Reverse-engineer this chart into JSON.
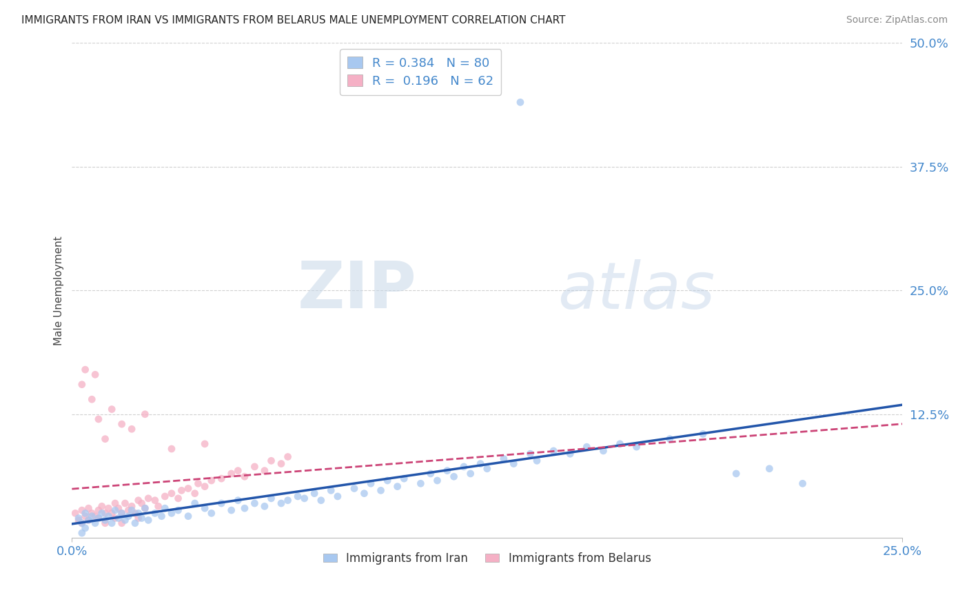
{
  "title": "IMMIGRANTS FROM IRAN VS IMMIGRANTS FROM BELARUS MALE UNEMPLOYMENT CORRELATION CHART",
  "source": "Source: ZipAtlas.com",
  "ylabel": "Male Unemployment",
  "xlim": [
    0.0,
    0.25
  ],
  "ylim": [
    0.0,
    0.5
  ],
  "ytick_vals": [
    0.125,
    0.25,
    0.375,
    0.5
  ],
  "ytick_labels": [
    "12.5%",
    "25.0%",
    "37.5%",
    "50.0%"
  ],
  "xtick_vals": [
    0.0,
    0.25
  ],
  "xtick_labels": [
    "0.0%",
    "25.0%"
  ],
  "iran_R": 0.384,
  "iran_N": 80,
  "belarus_R": 0.196,
  "belarus_N": 62,
  "iran_color": "#a8c8f0",
  "iran_line_color": "#2255aa",
  "belarus_color": "#f5b0c5",
  "belarus_line_color": "#cc4477",
  "legend_label_iran": "Immigrants from Iran",
  "legend_label_belarus": "Immigrants from Belarus",
  "watermark_zip": "ZIP",
  "watermark_atlas": "atlas",
  "background_color": "#ffffff",
  "grid_color": "#d0d0d0",
  "axis_color": "#4488cc",
  "iran_x": [
    0.002,
    0.003,
    0.004,
    0.004,
    0.005,
    0.006,
    0.007,
    0.008,
    0.009,
    0.01,
    0.011,
    0.012,
    0.013,
    0.014,
    0.015,
    0.016,
    0.017,
    0.018,
    0.019,
    0.02,
    0.021,
    0.022,
    0.023,
    0.025,
    0.027,
    0.028,
    0.03,
    0.032,
    0.035,
    0.037,
    0.04,
    0.042,
    0.045,
    0.048,
    0.05,
    0.052,
    0.055,
    0.058,
    0.06,
    0.063,
    0.065,
    0.068,
    0.07,
    0.073,
    0.075,
    0.078,
    0.08,
    0.085,
    0.088,
    0.09,
    0.093,
    0.095,
    0.098,
    0.1,
    0.105,
    0.108,
    0.11,
    0.113,
    0.115,
    0.118,
    0.12,
    0.123,
    0.125,
    0.13,
    0.133,
    0.138,
    0.14,
    0.145,
    0.15,
    0.155,
    0.16,
    0.165,
    0.17,
    0.18,
    0.19,
    0.2,
    0.21,
    0.22,
    0.135,
    0.003
  ],
  "iran_y": [
    0.02,
    0.015,
    0.025,
    0.01,
    0.018,
    0.022,
    0.015,
    0.02,
    0.025,
    0.018,
    0.022,
    0.015,
    0.028,
    0.02,
    0.025,
    0.018,
    0.022,
    0.028,
    0.015,
    0.025,
    0.02,
    0.03,
    0.018,
    0.025,
    0.022,
    0.03,
    0.025,
    0.028,
    0.022,
    0.035,
    0.03,
    0.025,
    0.035,
    0.028,
    0.038,
    0.03,
    0.035,
    0.032,
    0.04,
    0.035,
    0.038,
    0.042,
    0.04,
    0.045,
    0.038,
    0.048,
    0.042,
    0.05,
    0.045,
    0.055,
    0.048,
    0.058,
    0.052,
    0.06,
    0.055,
    0.065,
    0.058,
    0.068,
    0.062,
    0.072,
    0.065,
    0.075,
    0.07,
    0.08,
    0.075,
    0.085,
    0.078,
    0.088,
    0.085,
    0.092,
    0.088,
    0.095,
    0.092,
    0.1,
    0.105,
    0.065,
    0.07,
    0.055,
    0.44,
    0.005
  ],
  "belarus_x": [
    0.001,
    0.002,
    0.003,
    0.003,
    0.004,
    0.005,
    0.005,
    0.006,
    0.007,
    0.008,
    0.008,
    0.009,
    0.01,
    0.01,
    0.011,
    0.012,
    0.013,
    0.013,
    0.014,
    0.015,
    0.015,
    0.016,
    0.017,
    0.018,
    0.019,
    0.02,
    0.02,
    0.021,
    0.022,
    0.023,
    0.025,
    0.026,
    0.028,
    0.03,
    0.032,
    0.033,
    0.035,
    0.037,
    0.038,
    0.04,
    0.042,
    0.045,
    0.048,
    0.05,
    0.052,
    0.055,
    0.058,
    0.06,
    0.063,
    0.065,
    0.003,
    0.004,
    0.006,
    0.007,
    0.008,
    0.01,
    0.012,
    0.015,
    0.018,
    0.022,
    0.03,
    0.04
  ],
  "belarus_y": [
    0.025,
    0.018,
    0.028,
    0.015,
    0.022,
    0.03,
    0.018,
    0.025,
    0.022,
    0.028,
    0.02,
    0.032,
    0.025,
    0.015,
    0.03,
    0.025,
    0.035,
    0.02,
    0.03,
    0.025,
    0.015,
    0.035,
    0.028,
    0.032,
    0.025,
    0.038,
    0.02,
    0.035,
    0.03,
    0.04,
    0.038,
    0.032,
    0.042,
    0.045,
    0.04,
    0.048,
    0.05,
    0.045,
    0.055,
    0.052,
    0.058,
    0.06,
    0.065,
    0.068,
    0.062,
    0.072,
    0.068,
    0.078,
    0.075,
    0.082,
    0.155,
    0.17,
    0.14,
    0.165,
    0.12,
    0.1,
    0.13,
    0.115,
    0.11,
    0.125,
    0.09,
    0.095
  ]
}
